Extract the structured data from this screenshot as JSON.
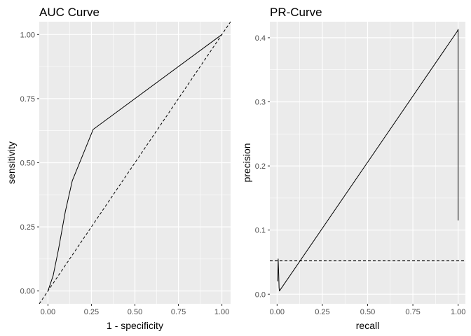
{
  "chart_data": [
    {
      "type": "line",
      "title": "AUC Curve",
      "xlabel": "1 - specificity",
      "ylabel": "sensitivity",
      "xlim": [
        -0.05,
        1.05
      ],
      "ylim": [
        -0.05,
        1.05
      ],
      "xticks": [
        0.0,
        0.25,
        0.5,
        0.75,
        1.0
      ],
      "yticks": [
        0.0,
        0.25,
        0.5,
        0.75,
        1.0
      ],
      "xtick_labels": [
        "0.00",
        "0.25",
        "0.50",
        "0.75",
        "1.00"
      ],
      "ytick_labels": [
        "0.00",
        "0.25",
        "0.50",
        "0.75",
        "1.00"
      ],
      "grid": true,
      "series": [
        {
          "style": "solid",
          "points": [
            [
              0.0,
              0.0
            ],
            [
              0.03,
              0.06
            ],
            [
              0.06,
              0.16
            ],
            [
              0.1,
              0.31
            ],
            [
              0.14,
              0.43
            ],
            [
              0.2,
              0.53
            ],
            [
              0.26,
              0.63
            ],
            [
              1.0,
              1.0
            ]
          ]
        }
      ],
      "reference_lines": [
        {
          "style": "dashed",
          "slope": 1,
          "intercept": 0
        }
      ]
    },
    {
      "type": "line",
      "title": "PR-Curve",
      "xlabel": "recall",
      "ylabel": "precision",
      "xlim": [
        -0.04,
        1.04
      ],
      "ylim": [
        -0.015,
        0.425
      ],
      "xticks": [
        0.0,
        0.25,
        0.5,
        0.75,
        1.0
      ],
      "yticks": [
        0.0,
        0.1,
        0.2,
        0.3,
        0.4
      ],
      "xtick_labels": [
        "0.00",
        "0.25",
        "0.50",
        "0.75",
        "1.00"
      ],
      "ytick_labels": [
        "0.0",
        "0.1",
        "0.2",
        "0.3",
        "0.4"
      ],
      "grid": true,
      "series": [
        {
          "style": "solid",
          "points": [
            [
              0.003,
              0.02
            ],
            [
              0.006,
              0.055
            ],
            [
              0.009,
              0.03
            ],
            [
              0.011,
              0.01
            ],
            [
              0.013,
              0.005
            ],
            [
              0.995,
              0.41
            ],
            [
              1.0,
              0.413
            ],
            [
              1.0,
              0.115
            ]
          ]
        }
      ],
      "reference_lines": [
        {
          "style": "dashed",
          "slope": 0,
          "intercept": 0.052
        }
      ]
    }
  ]
}
